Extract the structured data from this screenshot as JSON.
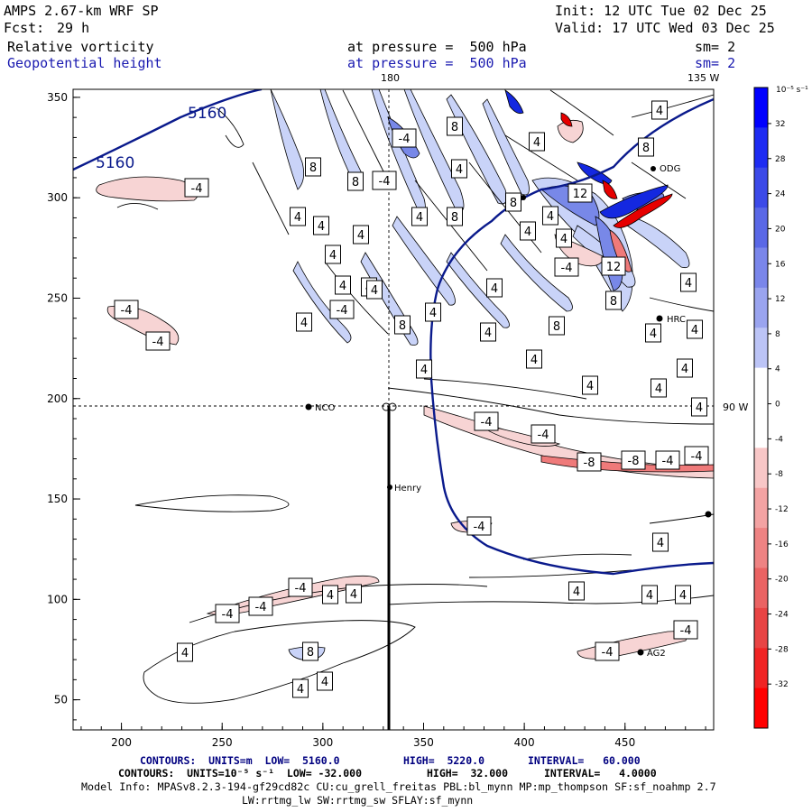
{
  "header": {
    "model": "AMPS 2.67-km WRF SP",
    "init": "Init: 12 UTC Tue 02 Dec 25",
    "fcst_label": "Fcst:",
    "fcst_value": "29 h",
    "valid": "Valid: 17 UTC Wed 03 Dec 25",
    "field1": "Relative vorticity",
    "field1_level": "at pressure =  500 hPa",
    "field1_smooth": "sm= 2",
    "field2": "Geopotential height",
    "field2_level": "at pressure =  500 hPa",
    "field2_smooth": "sm= 2"
  },
  "map_labels": {
    "lon_180": "180",
    "lon_135w": "135 W",
    "lon_90w": "90 W",
    "station_nco": "NCO",
    "station_henry": "Henry",
    "station_hrc": "HRC",
    "station_ag2": "AG2",
    "station_odg": "ODG",
    "height_label_1": "5160",
    "height_label_2": "5160"
  },
  "chart_data": {
    "type": "contour_map",
    "x_ticks": [
      "200",
      "250",
      "300",
      "350",
      "400",
      "450"
    ],
    "y_ticks": [
      "50",
      "100",
      "150",
      "200",
      "250",
      "300",
      "350"
    ],
    "x_range": [
      176,
      494
    ],
    "y_range": [
      35,
      354
    ],
    "colorbar_title": "10⁻⁵ s⁻¹",
    "colorbar_ticks": [
      "32",
      "28",
      "24",
      "20",
      "16",
      "12",
      "8",
      "4",
      "0",
      "-4",
      "-8",
      "-12",
      "-16",
      "-20",
      "-24",
      "-28",
      "-32"
    ],
    "vorticity_labels": [
      {
        "x": 337,
        "y": 357,
        "t": "4"
      },
      {
        "x": 379,
        "y": 343,
        "t": "-4"
      },
      {
        "x": 409,
        "y": 318,
        "t": "4"
      },
      {
        "x": 347,
        "y": 185,
        "t": "8"
      },
      {
        "x": 394,
        "y": 201,
        "t": "8"
      },
      {
        "x": 426,
        "y": 200,
        "t": "-4"
      },
      {
        "x": 218,
        "y": 208,
        "t": "-4"
      },
      {
        "x": 330,
        "y": 240,
        "t": "4"
      },
      {
        "x": 356,
        "y": 250,
        "t": "4"
      },
      {
        "x": 400,
        "y": 260,
        "t": "4"
      },
      {
        "x": 369,
        "y": 282,
        "t": "4"
      },
      {
        "x": 380,
        "y": 316,
        "t": "4"
      },
      {
        "x": 140,
        "y": 343,
        "t": "-4"
      },
      {
        "x": 175,
        "y": 378,
        "t": "-4"
      },
      {
        "x": 415,
        "y": 321,
        "t": "4"
      },
      {
        "x": 446,
        "y": 360,
        "t": "8"
      },
      {
        "x": 470,
        "y": 409,
        "t": "4"
      },
      {
        "x": 480,
        "y": 346,
        "t": "4"
      },
      {
        "x": 447,
        "y": 153,
        "t": "4"
      },
      {
        "x": 448,
        "y": 153,
        "t": "-4"
      },
      {
        "x": 465,
        "y": 240,
        "t": "4"
      },
      {
        "x": 504,
        "y": 140,
        "t": "8"
      },
      {
        "x": 504,
        "y": 240,
        "t": "8"
      },
      {
        "x": 509,
        "y": 187,
        "t": "4"
      },
      {
        "x": 548,
        "y": 319,
        "t": "4"
      },
      {
        "x": 541,
        "y": 368,
        "t": "4"
      },
      {
        "x": 569,
        "y": 224,
        "t": "8"
      },
      {
        "x": 585,
        "y": 256,
        "t": "4"
      },
      {
        "x": 595,
        "y": 157,
        "t": "4"
      },
      {
        "x": 610,
        "y": 239,
        "t": "4"
      },
      {
        "x": 625,
        "y": 264,
        "t": "4"
      },
      {
        "x": 617,
        "y": 361,
        "t": "8"
      },
      {
        "x": 628,
        "y": 296,
        "t": "-4"
      },
      {
        "x": 643,
        "y": 214,
        "t": "12"
      },
      {
        "x": 680,
        "y": 295,
        "t": "12"
      },
      {
        "x": 680,
        "y": 333,
        "t": "8"
      },
      {
        "x": 716,
        "y": 163,
        "t": "8"
      },
      {
        "x": 731,
        "y": 122,
        "t": "4"
      },
      {
        "x": 763,
        "y": 313,
        "t": "4"
      },
      {
        "x": 770,
        "y": 365,
        "t": "4"
      },
      {
        "x": 724,
        "y": 369,
        "t": "4"
      },
      {
        "x": 759,
        "y": 408,
        "t": "4"
      },
      {
        "x": 730,
        "y": 430,
        "t": "4"
      },
      {
        "x": 775,
        "y": 451,
        "t": "4"
      },
      {
        "x": 592,
        "y": 398,
        "t": "4"
      },
      {
        "x": 654,
        "y": 427,
        "t": "4"
      },
      {
        "x": 539,
        "y": 467,
        "t": "-4"
      },
      {
        "x": 602,
        "y": 481,
        "t": "-4"
      },
      {
        "x": 653,
        "y": 512,
        "t": "-8"
      },
      {
        "x": 702,
        "y": 510,
        "t": "-8"
      },
      {
        "x": 740,
        "y": 510,
        "t": "-4"
      },
      {
        "x": 772,
        "y": 505,
        "t": "-4"
      },
      {
        "x": 531,
        "y": 583,
        "t": "-4"
      },
      {
        "x": 732,
        "y": 601,
        "t": "4"
      },
      {
        "x": 333,
        "y": 651,
        "t": "-4"
      },
      {
        "x": 366,
        "y": 659,
        "t": "4"
      },
      {
        "x": 392,
        "y": 658,
        "t": "4"
      },
      {
        "x": 289,
        "y": 672,
        "t": "-4"
      },
      {
        "x": 252,
        "y": 680,
        "t": "-4"
      },
      {
        "x": 639,
        "y": 655,
        "t": "4"
      },
      {
        "x": 720,
        "y": 659,
        "t": "4"
      },
      {
        "x": 757,
        "y": 659,
        "t": "4"
      },
      {
        "x": 760,
        "y": 698,
        "t": "-4"
      },
      {
        "x": 673,
        "y": 722,
        "t": "-4"
      },
      {
        "x": 205,
        "y": 723,
        "t": "4"
      },
      {
        "x": 344,
        "y": 722,
        "t": "8"
      },
      {
        "x": 360,
        "y": 755,
        "t": "4"
      },
      {
        "x": 333,
        "y": 763,
        "t": "4"
      }
    ]
  },
  "footer": {
    "line1_a": "CONTOURS:  UNITS=m  LOW=  5160.0",
    "line1_b": "HIGH=  5220.0",
    "line1_c": "INTERVAL=   60.000",
    "line2_a": "CONTOURS:  UNITS=10⁻⁵ s⁻¹  LOW= -32.000",
    "line2_b": "HIGH=  32.000",
    "line2_c": "INTERVAL=   4.0000",
    "model_info": "Model Info: MPASv8.2.3-194-gf29cd82c CU:cu_grell_freitas PBL:bl_mynn MP:mp_thompson SF:sf_noahmp 2.7",
    "physics": "LW:rrtmg_lw SW:rrtmg_sw SFLAY:sf_mynn"
  }
}
